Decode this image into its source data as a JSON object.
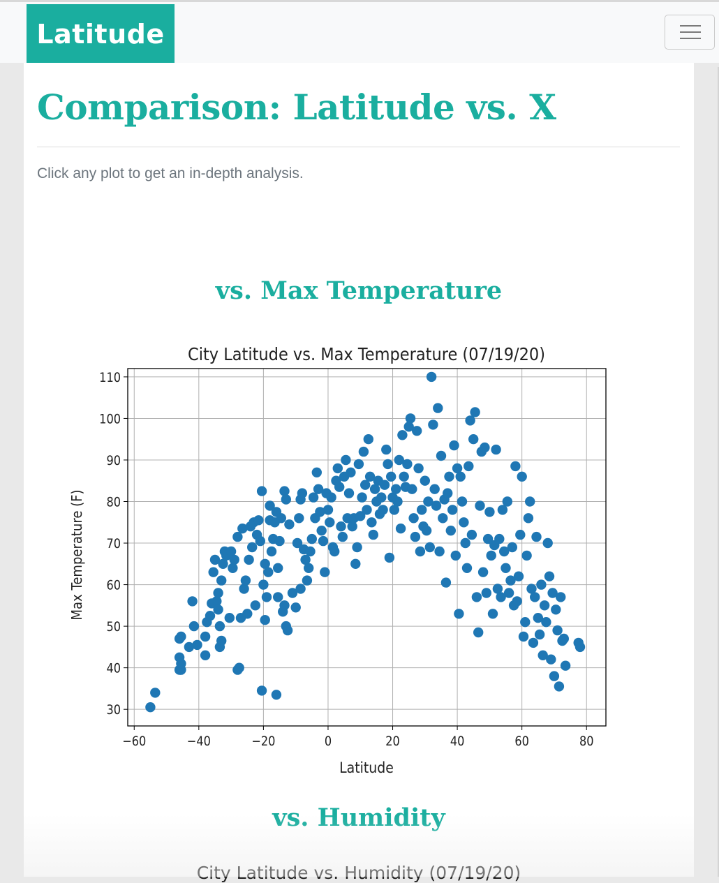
{
  "navbar": {
    "brand": "Latitude",
    "menu_icon": "hamburger-menu-icon"
  },
  "page": {
    "title": "Comparison: Latitude vs. X",
    "intro": "Click any plot to get an in-depth analysis."
  },
  "sections": [
    {
      "heading": "vs. Max Temperature"
    },
    {
      "heading": "vs. Humidity",
      "plot_title_partial": "City Latitude vs. Humidity (07/19/20)"
    }
  ],
  "colors": {
    "accent": "#1aae9f",
    "marker": "#1f77b4",
    "muted_text": "#6c757d",
    "navbar_bg": "#f8f9fa"
  },
  "chart_data": {
    "type": "scatter",
    "title": "City Latitude vs. Max Temperature (07/19/20)",
    "xlabel": "Latitude",
    "ylabel": "Max Temperature (F)",
    "xlim": [
      -62,
      86
    ],
    "ylim": [
      26,
      112
    ],
    "xticks": [
      -60,
      -40,
      -20,
      0,
      20,
      40,
      60,
      80
    ],
    "yticks": [
      30,
      40,
      50,
      60,
      70,
      80,
      90,
      100,
      110
    ],
    "grid": true,
    "series": [
      {
        "color": "#1f77b4",
        "points": [
          [
            -55,
            30.5
          ],
          [
            -53.5,
            34
          ],
          [
            -46,
            39.5
          ],
          [
            -45.5,
            39.5
          ],
          [
            -46,
            42.5
          ],
          [
            -45.5,
            41
          ],
          [
            -45.5,
            47.5
          ],
          [
            -46,
            47
          ],
          [
            -43,
            45
          ],
          [
            -42,
            56
          ],
          [
            -41.5,
            50
          ],
          [
            -40.5,
            45.5
          ],
          [
            -38,
            43
          ],
          [
            -38,
            47.5
          ],
          [
            -37.5,
            51
          ],
          [
            -36.5,
            52.5
          ],
          [
            -36,
            55.5
          ],
          [
            -35.5,
            63
          ],
          [
            -35,
            66
          ],
          [
            -34.5,
            56
          ],
          [
            -34,
            54
          ],
          [
            -34,
            58
          ],
          [
            -33.5,
            50
          ],
          [
            -33.5,
            45
          ],
          [
            -33,
            46.5
          ],
          [
            -33,
            61
          ],
          [
            -32.5,
            65
          ],
          [
            -32,
            68
          ],
          [
            -31.5,
            67
          ],
          [
            -30.5,
            52
          ],
          [
            -30,
            68
          ],
          [
            -29.5,
            64
          ],
          [
            -29,
            66
          ],
          [
            -28,
            71.5
          ],
          [
            -28,
            39.5
          ],
          [
            -27.5,
            40
          ],
          [
            -27,
            52
          ],
          [
            -26.5,
            73.5
          ],
          [
            -26,
            59
          ],
          [
            -25.5,
            61
          ],
          [
            -25,
            53
          ],
          [
            -24.5,
            66
          ],
          [
            -24,
            74
          ],
          [
            -23.5,
            69
          ],
          [
            -23,
            75
          ],
          [
            -22.5,
            55
          ],
          [
            -22,
            72
          ],
          [
            -21.5,
            75.5
          ],
          [
            -21,
            70.5
          ],
          [
            -20.5,
            82.5
          ],
          [
            -20.5,
            34.5
          ],
          [
            -20,
            60
          ],
          [
            -19.5,
            65
          ],
          [
            -19.5,
            51.5
          ],
          [
            -19,
            57
          ],
          [
            -18.5,
            63
          ],
          [
            -18,
            79
          ],
          [
            -18,
            75.5
          ],
          [
            -17.5,
            68
          ],
          [
            -17,
            71
          ],
          [
            -16.5,
            75
          ],
          [
            -16,
            77.5
          ],
          [
            -16,
            33.5
          ],
          [
            -15.5,
            64
          ],
          [
            -15.5,
            57
          ],
          [
            -15,
            70.5
          ],
          [
            -14.5,
            76
          ],
          [
            -14,
            53.5
          ],
          [
            -13.5,
            55
          ],
          [
            -13,
            50
          ],
          [
            -13.5,
            82.5
          ],
          [
            -13,
            80.5
          ],
          [
            -12.5,
            49
          ],
          [
            -12,
            74.5
          ],
          [
            -11,
            58
          ],
          [
            -10,
            54.5
          ],
          [
            -9.5,
            70
          ],
          [
            -9,
            76
          ],
          [
            -8.5,
            80.5
          ],
          [
            -8.5,
            59
          ],
          [
            -8,
            82
          ],
          [
            -7.5,
            68.5
          ],
          [
            -7,
            66
          ],
          [
            -6.5,
            61
          ],
          [
            -6,
            64
          ],
          [
            -5.5,
            68
          ],
          [
            -5,
            71
          ],
          [
            -4.5,
            81
          ],
          [
            -4,
            76
          ],
          [
            -3.5,
            87
          ],
          [
            -3,
            83
          ],
          [
            -2.5,
            77.5
          ],
          [
            -2,
            73
          ],
          [
            -1.5,
            70.5
          ],
          [
            -1,
            63
          ],
          [
            -0.5,
            82
          ],
          [
            0,
            78
          ],
          [
            0.5,
            75
          ],
          [
            1,
            81
          ],
          [
            1.5,
            69
          ],
          [
            2,
            68
          ],
          [
            2.5,
            85
          ],
          [
            3,
            88
          ],
          [
            3.5,
            83.5
          ],
          [
            4,
            74
          ],
          [
            4.5,
            71.5
          ],
          [
            5,
            86
          ],
          [
            5.5,
            90
          ],
          [
            6,
            76
          ],
          [
            6.5,
            82
          ],
          [
            7,
            87
          ],
          [
            7.5,
            74
          ],
          [
            8,
            76
          ],
          [
            8.5,
            65
          ],
          [
            9,
            69
          ],
          [
            9.5,
            89
          ],
          [
            10,
            76.5
          ],
          [
            10.5,
            81
          ],
          [
            11,
            92
          ],
          [
            11.5,
            84
          ],
          [
            12,
            78
          ],
          [
            12.5,
            95
          ],
          [
            13,
            86
          ],
          [
            13.5,
            75
          ],
          [
            14,
            72
          ],
          [
            14.5,
            83
          ],
          [
            15,
            80
          ],
          [
            15.5,
            85
          ],
          [
            16,
            77
          ],
          [
            16.5,
            81
          ],
          [
            17,
            78
          ],
          [
            17.5,
            84
          ],
          [
            18,
            92.5
          ],
          [
            18.5,
            89
          ],
          [
            19,
            66.5
          ],
          [
            19.5,
            86
          ],
          [
            20,
            81
          ],
          [
            20.5,
            78
          ],
          [
            21,
            83
          ],
          [
            21.5,
            80
          ],
          [
            22,
            90
          ],
          [
            22.5,
            73.5
          ],
          [
            23,
            96
          ],
          [
            23.5,
            86
          ],
          [
            24,
            83.5
          ],
          [
            24.5,
            89
          ],
          [
            25,
            98
          ],
          [
            25.5,
            100
          ],
          [
            26,
            83
          ],
          [
            26.5,
            76
          ],
          [
            27,
            71.5
          ],
          [
            27.5,
            97
          ],
          [
            28,
            88
          ],
          [
            28.5,
            68
          ],
          [
            29,
            78
          ],
          [
            29.5,
            74
          ],
          [
            30,
            85
          ],
          [
            30.5,
            73
          ],
          [
            31,
            80
          ],
          [
            31.5,
            69
          ],
          [
            32,
            110
          ],
          [
            32.5,
            98.5
          ],
          [
            33,
            83
          ],
          [
            33.5,
            79
          ],
          [
            34,
            102.5
          ],
          [
            34.5,
            68
          ],
          [
            35,
            91
          ],
          [
            35.5,
            76
          ],
          [
            36,
            80.5
          ],
          [
            36.5,
            60.5
          ],
          [
            37,
            82
          ],
          [
            37.5,
            86
          ],
          [
            38,
            73
          ],
          [
            38.5,
            78
          ],
          [
            39,
            93.5
          ],
          [
            39.5,
            67
          ],
          [
            40,
            88
          ],
          [
            40.5,
            53
          ],
          [
            41,
            86
          ],
          [
            41.5,
            80
          ],
          [
            42,
            75
          ],
          [
            42.5,
            70
          ],
          [
            43,
            64
          ],
          [
            43.5,
            88.5
          ],
          [
            44,
            99.5
          ],
          [
            44.5,
            72
          ],
          [
            45,
            95
          ],
          [
            45.5,
            101.5
          ],
          [
            46,
            57
          ],
          [
            46.5,
            48.5
          ],
          [
            47,
            79
          ],
          [
            47.5,
            92
          ],
          [
            48,
            63
          ],
          [
            48.5,
            93
          ],
          [
            49,
            58
          ],
          [
            49.5,
            71
          ],
          [
            50,
            77.5
          ],
          [
            50.5,
            67
          ],
          [
            51,
            53
          ],
          [
            51.5,
            69.5
          ],
          [
            52,
            92.5
          ],
          [
            52.5,
            59
          ],
          [
            53,
            71
          ],
          [
            53.5,
            57
          ],
          [
            54,
            78
          ],
          [
            54.5,
            68
          ],
          [
            55,
            64
          ],
          [
            55.5,
            80
          ],
          [
            56,
            58
          ],
          [
            56.5,
            61
          ],
          [
            57,
            69
          ],
          [
            57.5,
            55
          ],
          [
            58,
            88.5
          ],
          [
            58.5,
            56
          ],
          [
            59,
            62
          ],
          [
            59.5,
            72
          ],
          [
            60,
            86
          ],
          [
            60.5,
            47.5
          ],
          [
            61,
            51
          ],
          [
            61.5,
            67
          ],
          [
            62,
            76
          ],
          [
            62.5,
            80
          ],
          [
            63,
            59
          ],
          [
            63.5,
            46
          ],
          [
            64,
            57
          ],
          [
            64.5,
            71.5
          ],
          [
            65,
            52
          ],
          [
            65.5,
            48
          ],
          [
            66,
            60
          ],
          [
            66.5,
            43
          ],
          [
            67,
            55
          ],
          [
            67.5,
            51
          ],
          [
            68,
            70
          ],
          [
            68.5,
            62
          ],
          [
            69,
            42
          ],
          [
            69.5,
            58
          ],
          [
            70,
            38
          ],
          [
            70.5,
            54
          ],
          [
            71,
            49
          ],
          [
            71.5,
            35.5
          ],
          [
            72,
            57
          ],
          [
            72.5,
            46.5
          ],
          [
            73,
            47
          ],
          [
            73.5,
            40.5
          ],
          [
            77.5,
            46
          ],
          [
            78,
            45
          ]
        ]
      }
    ]
  }
}
